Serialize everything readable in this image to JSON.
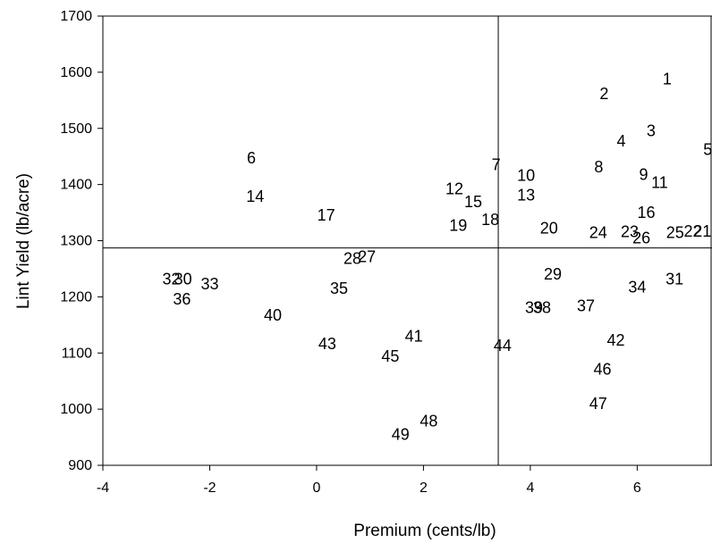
{
  "chart_data": {
    "type": "scatter",
    "xlabel": "Premium (cents/lb)",
    "ylabel": "Lint Yield (lb/acre)",
    "xlim": [
      -4,
      7.4
    ],
    "ylim": [
      900,
      1700
    ],
    "x_ticks": [
      -4,
      -2,
      0,
      2,
      4,
      6
    ],
    "y_ticks": [
      900,
      1000,
      1100,
      1200,
      1300,
      1400,
      1500,
      1600,
      1700
    ],
    "x_tick_labels": [
      "-4",
      "-2",
      "0",
      "2",
      "4",
      "6"
    ],
    "y_tick_labels": [
      "900",
      "1000",
      "1100",
      "1200",
      "1300",
      "1400",
      "1500",
      "1600",
      "1700"
    ],
    "reference_lines": {
      "x": 3.4,
      "y": 1287
    },
    "points": [
      {
        "label": "1",
        "x": 6.56,
        "y": 1588
      },
      {
        "label": "2",
        "x": 5.38,
        "y": 1562
      },
      {
        "label": "3",
        "x": 6.26,
        "y": 1496
      },
      {
        "label": "4",
        "x": 5.7,
        "y": 1477
      },
      {
        "label": "5",
        "x": 7.32,
        "y": 1462
      },
      {
        "label": "6",
        "x": -1.22,
        "y": 1447
      },
      {
        "label": "7",
        "x": 3.36,
        "y": 1435
      },
      {
        "label": "8",
        "x": 5.28,
        "y": 1431
      },
      {
        "label": "9",
        "x": 6.12,
        "y": 1418
      },
      {
        "label": "10",
        "x": 3.92,
        "y": 1416
      },
      {
        "label": "11",
        "x": 6.42,
        "y": 1403
      },
      {
        "label": "12",
        "x": 2.58,
        "y": 1392
      },
      {
        "label": "13",
        "x": 3.92,
        "y": 1381
      },
      {
        "label": "14",
        "x": -1.15,
        "y": 1379
      },
      {
        "label": "15",
        "x": 2.93,
        "y": 1369
      },
      {
        "label": "16",
        "x": 6.17,
        "y": 1350
      },
      {
        "label": "17",
        "x": 0.18,
        "y": 1345
      },
      {
        "label": "18",
        "x": 3.25,
        "y": 1337
      },
      {
        "label": "19",
        "x": 2.65,
        "y": 1327
      },
      {
        "label": "20",
        "x": 4.35,
        "y": 1322
      },
      {
        "label": "21",
        "x": 7.22,
        "y": 1317
      },
      {
        "label": "22",
        "x": 7.04,
        "y": 1317
      },
      {
        "label": "23",
        "x": 5.86,
        "y": 1316
      },
      {
        "label": "24",
        "x": 5.27,
        "y": 1314
      },
      {
        "label": "25",
        "x": 6.71,
        "y": 1314
      },
      {
        "label": "26",
        "x": 6.08,
        "y": 1305
      },
      {
        "label": "27",
        "x": 0.94,
        "y": 1271
      },
      {
        "label": "28",
        "x": 0.67,
        "y": 1268
      },
      {
        "label": "29",
        "x": 4.42,
        "y": 1240
      },
      {
        "label": "30",
        "x": -2.5,
        "y": 1232
      },
      {
        "label": "31",
        "x": 6.7,
        "y": 1232
      },
      {
        "label": "32",
        "x": -2.72,
        "y": 1232
      },
      {
        "label": "33",
        "x": -2.0,
        "y": 1223
      },
      {
        "label": "34",
        "x": 6.0,
        "y": 1217
      },
      {
        "label": "35",
        "x": 0.42,
        "y": 1215
      },
      {
        "label": "36",
        "x": -2.52,
        "y": 1196
      },
      {
        "label": "37",
        "x": 5.04,
        "y": 1184
      },
      {
        "label": "38",
        "x": 4.22,
        "y": 1181
      },
      {
        "label": "39",
        "x": 4.07,
        "y": 1181
      },
      {
        "label": "40",
        "x": -0.82,
        "y": 1167
      },
      {
        "label": "41",
        "x": 1.82,
        "y": 1130
      },
      {
        "label": "42",
        "x": 5.6,
        "y": 1123
      },
      {
        "label": "43",
        "x": 0.2,
        "y": 1116
      },
      {
        "label": "44",
        "x": 3.48,
        "y": 1113
      },
      {
        "label": "45",
        "x": 1.38,
        "y": 1094
      },
      {
        "label": "46",
        "x": 5.35,
        "y": 1071
      },
      {
        "label": "47",
        "x": 5.27,
        "y": 1010
      },
      {
        "label": "48",
        "x": 2.1,
        "y": 979
      },
      {
        "label": "49",
        "x": 1.57,
        "y": 955
      }
    ]
  }
}
